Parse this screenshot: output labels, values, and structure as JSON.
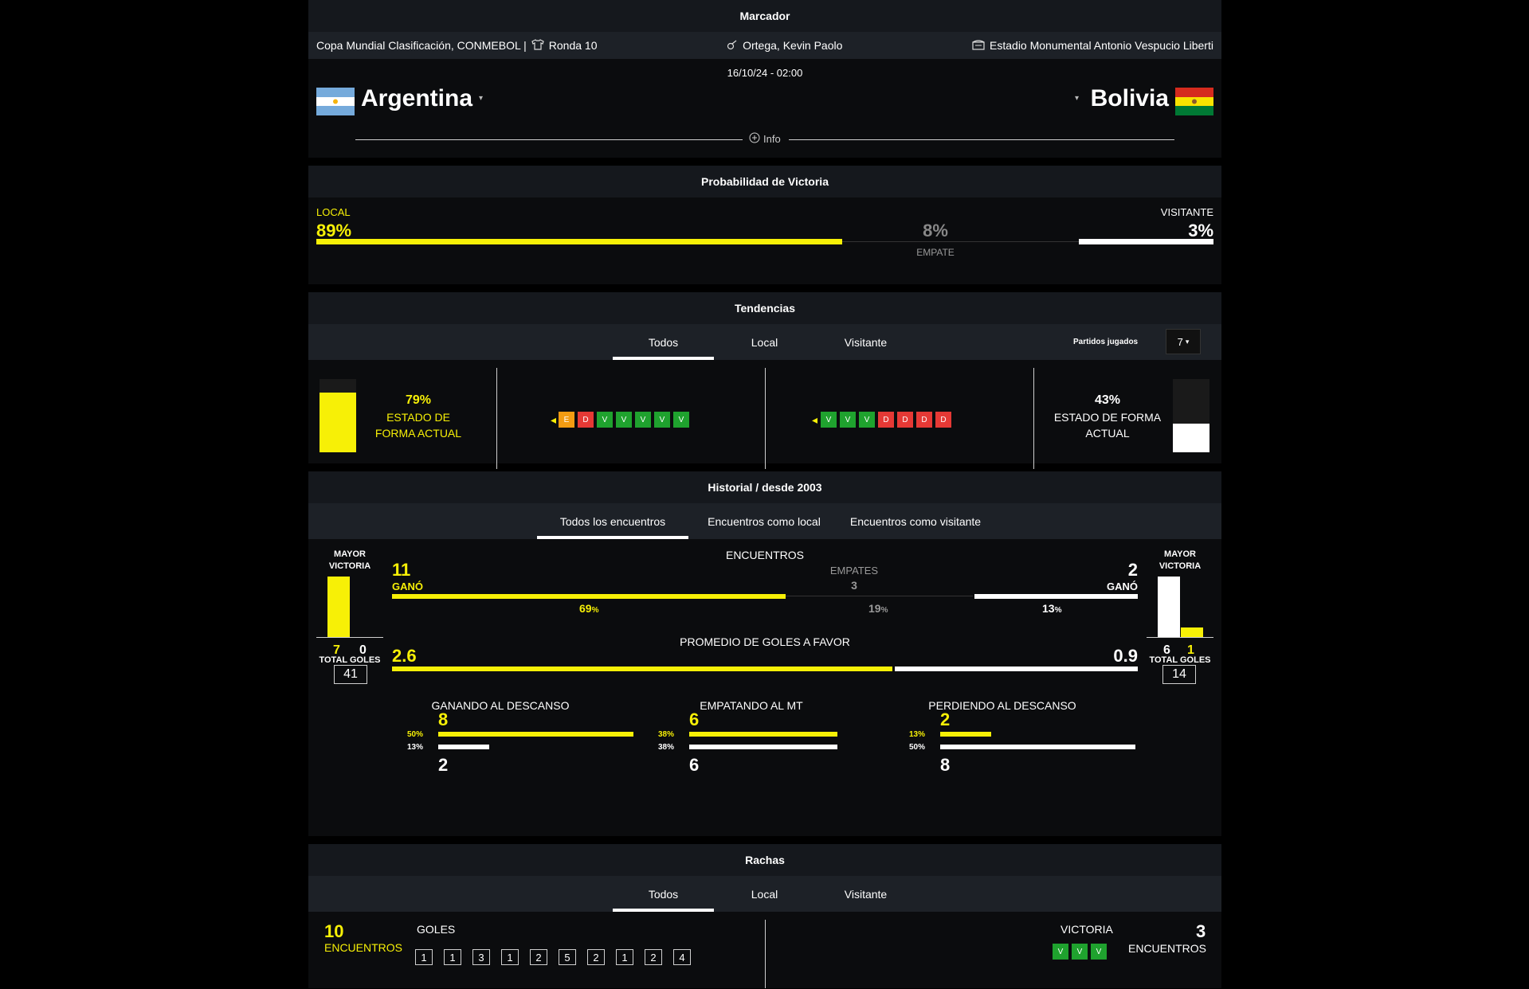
{
  "scoreboard": {
    "title": "Marcador",
    "competition": "Copa Mundial Clasificación, CONMEBOL |",
    "round": "Ronda 10",
    "referee": "Ortega, Kevin Paolo",
    "stadium": "Estadio Monumental Antonio Vespucio Liberti",
    "datetime": "16/10/24 - 02:00",
    "home": "Argentina",
    "away": "Bolivia",
    "info": "Info"
  },
  "probability": {
    "title": "Probabilidad de Victoria",
    "local_label": "LOCAL",
    "visitor_label": "VISITANTE",
    "local_value": "89%",
    "draw_value": "8%",
    "draw_label": "EMPATE",
    "visitor_value": "3%",
    "local_fraction": 0.89,
    "draw_fraction": 0.08,
    "visitor_fraction": 0.03
  },
  "trends": {
    "title": "Tendencias",
    "tabs": [
      "Todos",
      "Local",
      "Visitante"
    ],
    "played_label": "Partidos jugados",
    "played_value": "7",
    "home_form": "79%",
    "home_form_label": "ESTADO DE FORMA ACTUAL",
    "home_form_fraction": 0.79,
    "away_form": "43%",
    "away_form_label": "ESTADO DE FORMA ACTUAL",
    "away_form_fraction": 0.43,
    "home_results": [
      "E",
      "D",
      "V",
      "V",
      "V",
      "V",
      "V"
    ],
    "away_results": [
      "V",
      "V",
      "V",
      "D",
      "D",
      "D",
      "D"
    ]
  },
  "history": {
    "title": "Historial / desde 2003",
    "tabs": [
      "Todos los encuentros",
      "Encuentros como local",
      "Encuentros como visitante"
    ],
    "biggest_win_label": "MAYOR VICTORIA",
    "home_biggest": [
      "7",
      "0"
    ],
    "away_biggest": [
      "6",
      "1"
    ],
    "matches_label": "ENCUENTROS",
    "home_wins": "11",
    "won_label": "GANÓ",
    "draws_label": "EMPATES",
    "draws": "3",
    "away_wins": "2",
    "home_pct": "69",
    "draw_pct": "19",
    "away_pct": "13",
    "pct_sign": "%",
    "goals_avg_label": "PROMEDIO DE GOLES A FAVOR",
    "home_avg": "2.6",
    "away_avg": "0.9",
    "total_goals_label": "TOTAL GOLES",
    "home_total": "41",
    "away_total": "14",
    "halftime": [
      {
        "label": "GANANDO AL DESCANSO",
        "top": "8",
        "bottom": "2",
        "top_pct": "50%",
        "bottom_pct": "13%",
        "top_frac": 0.5,
        "bottom_frac": 0.13
      },
      {
        "label": "EMPATANDO AL MT",
        "top": "6",
        "bottom": "6",
        "top_pct": "38%",
        "bottom_pct": "38%",
        "top_frac": 0.38,
        "bottom_frac": 0.38
      },
      {
        "label": "PERDIENDO AL DESCANSO",
        "top": "2",
        "bottom": "8",
        "top_pct": "13%",
        "bottom_pct": "50%",
        "top_frac": 0.13,
        "bottom_frac": 0.5
      }
    ]
  },
  "streaks": {
    "title": "Rachas",
    "tabs": [
      "Todos",
      "Local",
      "Visitante"
    ],
    "left_count": "10",
    "left_label": "ENCUENTROS",
    "goals_label": "GOLES",
    "goals": [
      "1",
      "1",
      "3",
      "1",
      "2",
      "5",
      "2",
      "1",
      "2",
      "4"
    ],
    "right_label": "VICTORIA",
    "right_count": "3",
    "right_sub": "ENCUENTROS",
    "right_results": [
      "V",
      "V",
      "V"
    ]
  },
  "colors": {
    "accent": "#f7f006",
    "win": "#1fa22e",
    "loss": "#e53935",
    "draw": "#f39c12"
  }
}
